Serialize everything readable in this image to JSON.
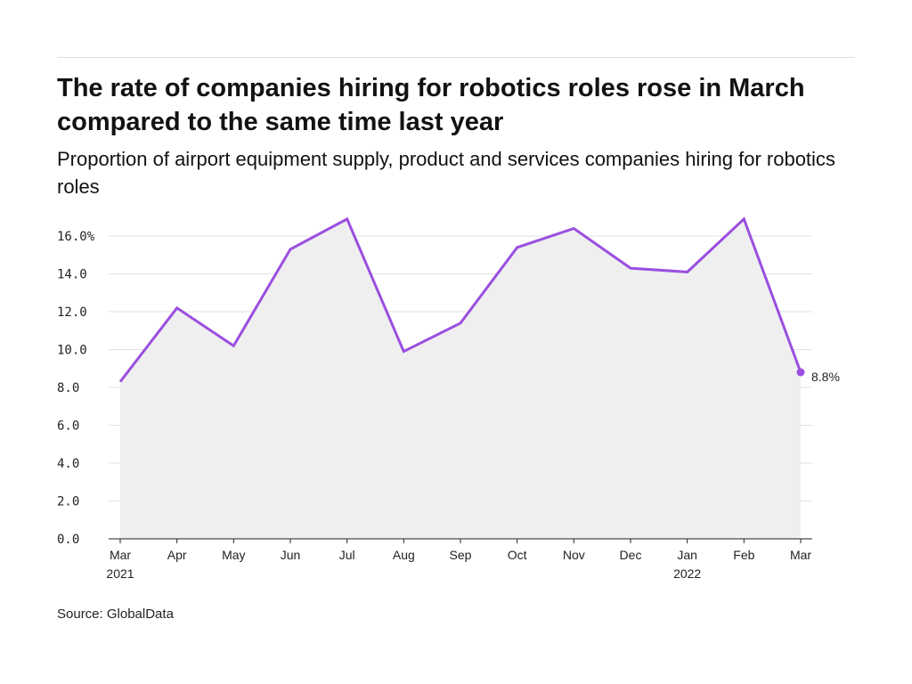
{
  "title": "The rate of companies hiring for robotics roles rose in March compared to the same time last year",
  "subtitle": "Proportion of airport equipment supply, product and services companies hiring for robotics roles",
  "source": "Source: GlobalData",
  "colors": {
    "line": "#9b4fe0",
    "area": "#efefef",
    "grid": "#e2e2e2",
    "axis": "#222222"
  },
  "chart_data": {
    "type": "area",
    "title": "The rate of companies hiring for robotics roles rose in March compared to the same time last year",
    "subtitle": "Proportion of airport equipment supply, product and services companies hiring for robotics roles",
    "categories": [
      "Mar 2021",
      "Apr",
      "May",
      "Jun",
      "Jul",
      "Aug",
      "Sep",
      "Oct",
      "Nov",
      "Dec",
      "Jan 2022",
      "Feb",
      "Mar"
    ],
    "x_ticks": [
      {
        "line1": "Mar",
        "line2": "2021"
      },
      {
        "line1": "Apr",
        "line2": ""
      },
      {
        "line1": "May",
        "line2": ""
      },
      {
        "line1": "Jun",
        "line2": ""
      },
      {
        "line1": "Jul",
        "line2": ""
      },
      {
        "line1": "Aug",
        "line2": ""
      },
      {
        "line1": "Sep",
        "line2": ""
      },
      {
        "line1": "Oct",
        "line2": ""
      },
      {
        "line1": "Nov",
        "line2": ""
      },
      {
        "line1": "Dec",
        "line2": ""
      },
      {
        "line1": "Jan",
        "line2": "2022"
      },
      {
        "line1": "Feb",
        "line2": ""
      },
      {
        "line1": "Mar",
        "line2": ""
      }
    ],
    "values": [
      8.3,
      12.2,
      10.2,
      15.3,
      16.9,
      9.9,
      11.4,
      15.4,
      16.4,
      14.3,
      14.1,
      16.9,
      8.8
    ],
    "y_ticks": [
      0,
      2,
      4,
      6,
      8,
      10,
      12,
      14,
      16
    ],
    "y_tick_labels": [
      "0.0",
      "2.0",
      "4.0",
      "6.0",
      "8.0",
      "10.0",
      "12.0",
      "14.0",
      "16.0%"
    ],
    "ylim": [
      0,
      16
    ],
    "grid": true,
    "end_label": "8.8%"
  }
}
